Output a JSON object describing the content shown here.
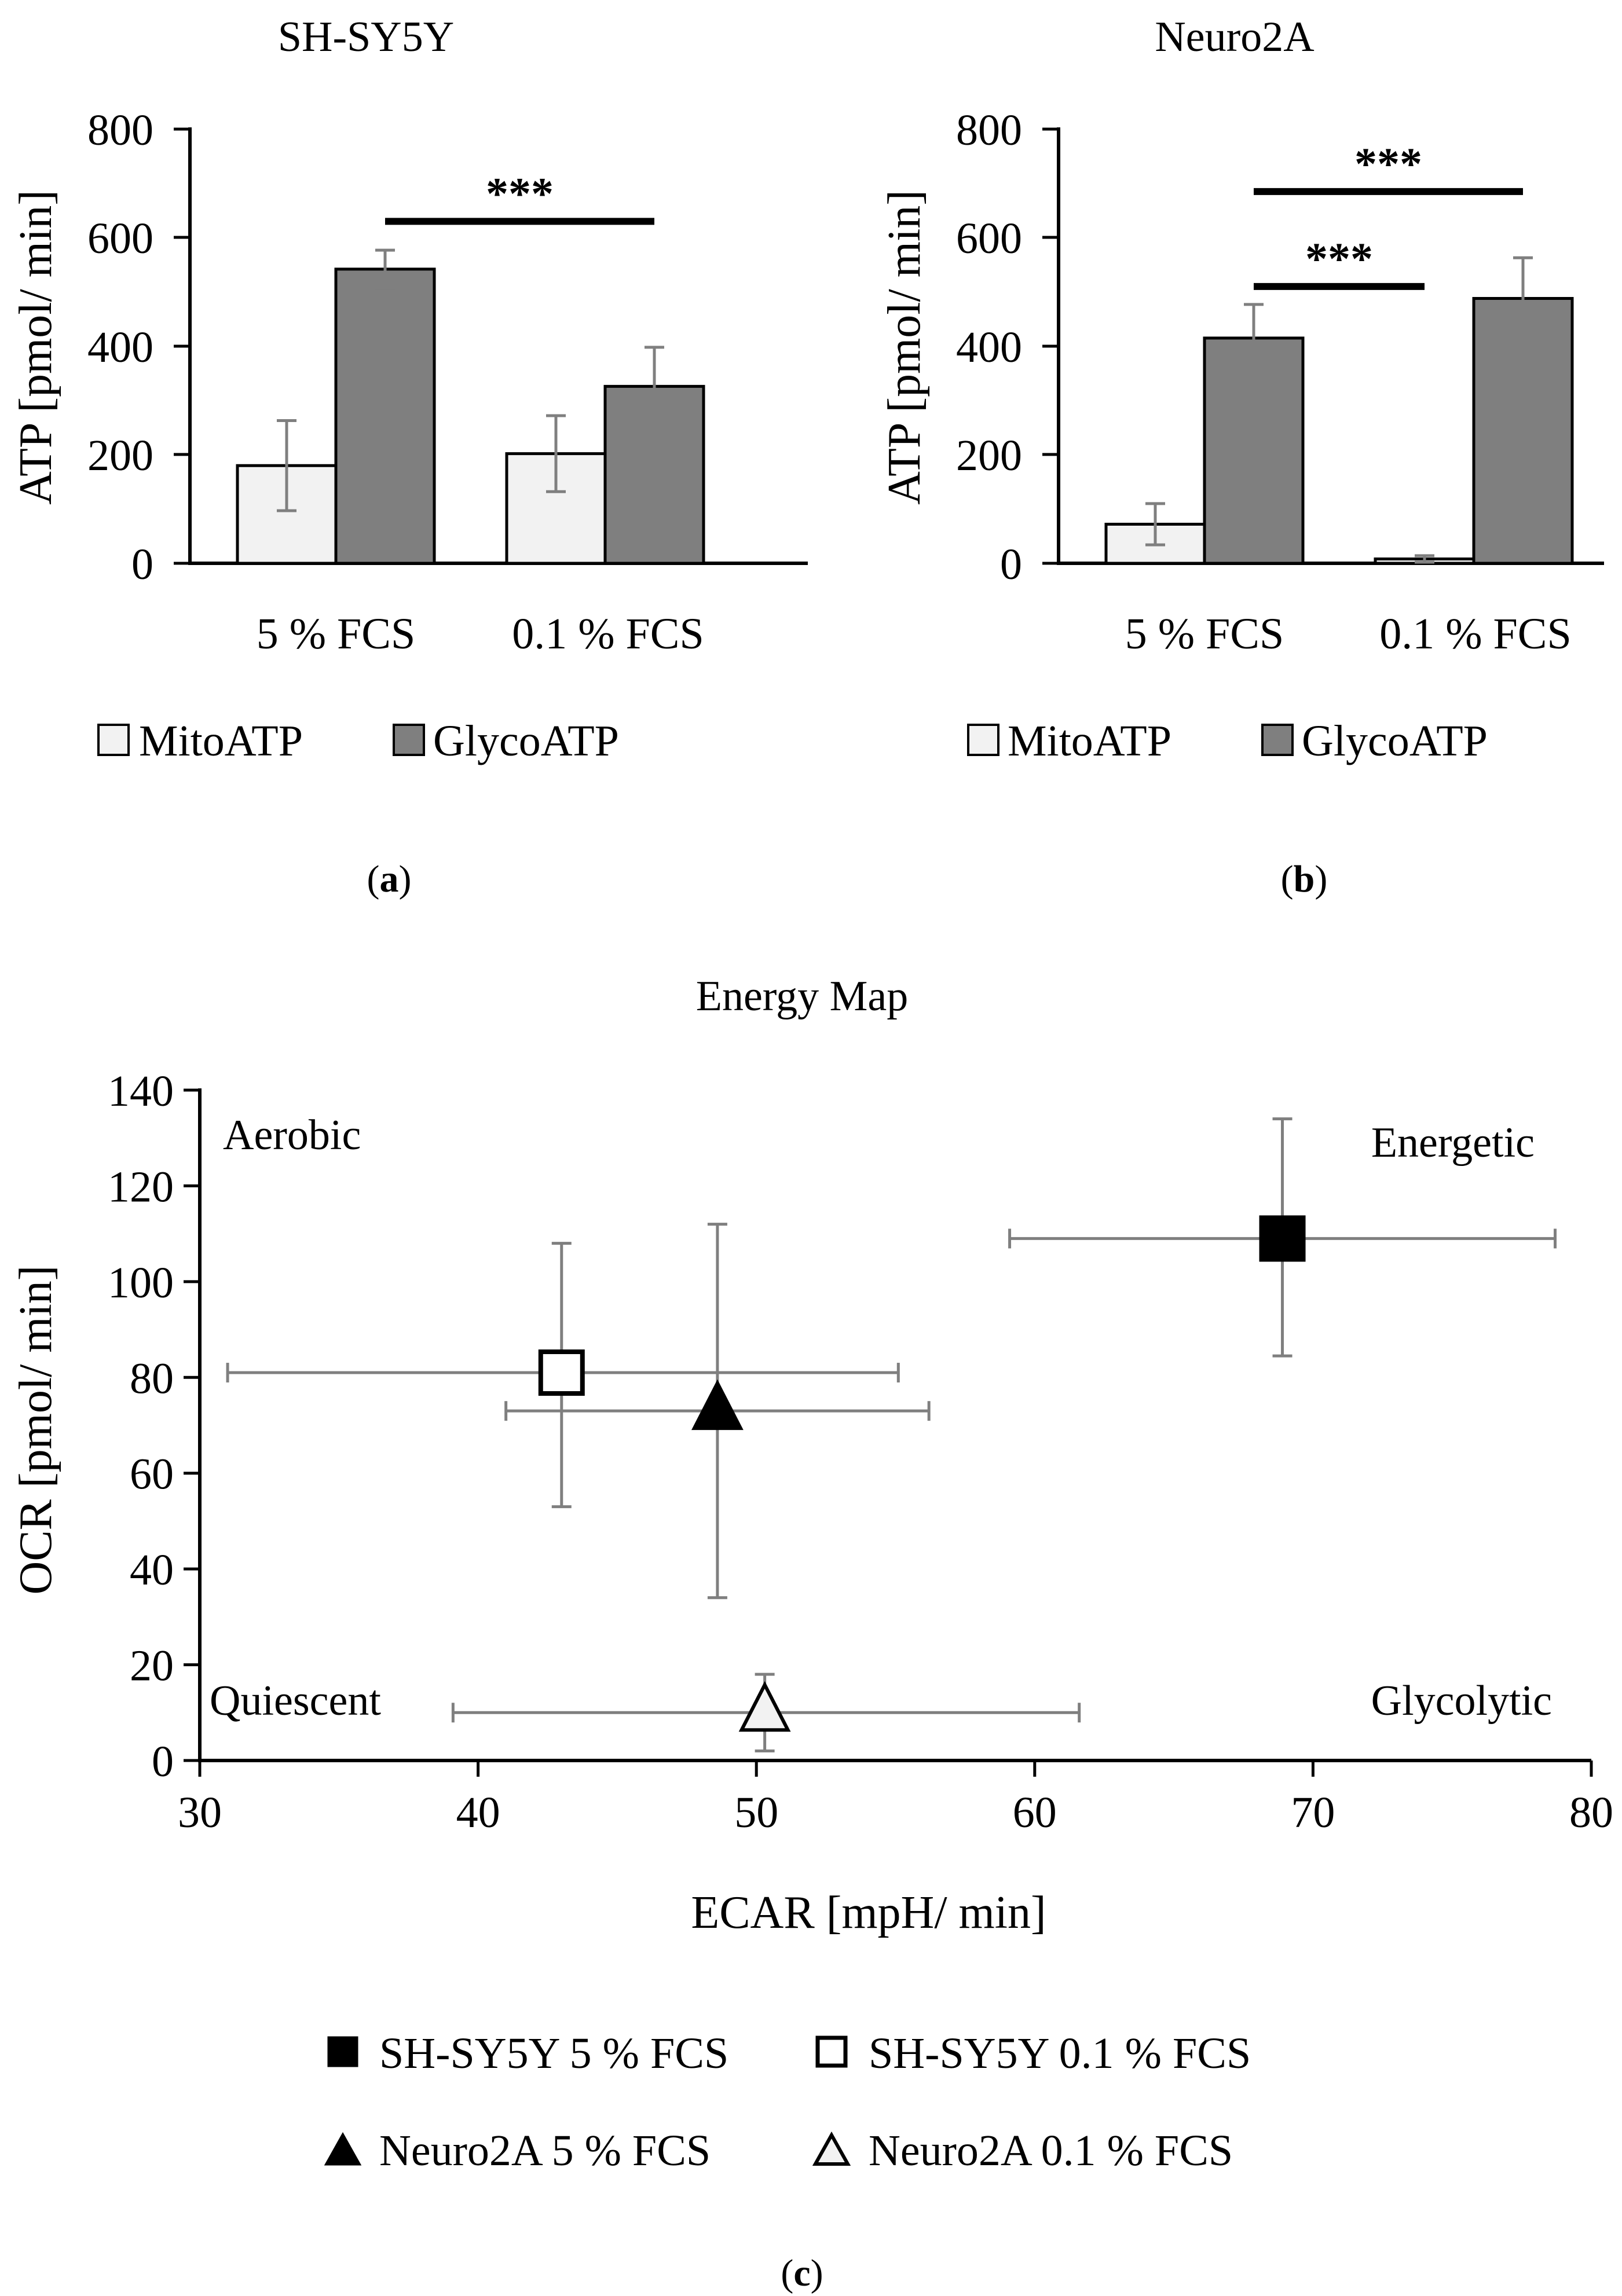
{
  "colors": {
    "mito": "#f2f2f2",
    "glyco": "#7f7f7f",
    "error_bar": "#7f7f7f",
    "axis": "#000000"
  },
  "chart_data": [
    {
      "type": "bar",
      "title": "SH-SY5Y",
      "panel_label": "(a)",
      "ylabel": "ATP [pmol/ min]",
      "ylim": [
        0,
        800
      ],
      "yticks": [
        0,
        200,
        400,
        600,
        800
      ],
      "categories": [
        "5 % FCS",
        "0.1 % FCS"
      ],
      "series": [
        {
          "name": "MitoATP",
          "values": [
            180,
            202
          ],
          "errors": [
            83,
            70
          ],
          "color": "#f2f2f2"
        },
        {
          "name": "GlycoATP",
          "values": [
            542,
            326
          ],
          "errors": [
            35,
            72
          ],
          "color": "#7f7f7f"
        }
      ],
      "significance": [
        {
          "label": "***",
          "from_bar": [
            0,
            1
          ],
          "to_bar": [
            1,
            1
          ],
          "y": 630
        }
      ],
      "legend": "bottom"
    },
    {
      "type": "bar",
      "title": "Neuro2A",
      "panel_label": "(b)",
      "ylabel": "ATP [pmol/ min]",
      "ylim": [
        0,
        800
      ],
      "yticks": [
        0,
        200,
        400,
        600,
        800
      ],
      "categories": [
        "5 % FCS",
        "0.1 % FCS"
      ],
      "series": [
        {
          "name": "MitoATP",
          "values": [
            72,
            8
          ],
          "errors": [
            38,
            6
          ],
          "color": "#f2f2f2"
        },
        {
          "name": "GlycoATP",
          "values": [
            415,
            488
          ],
          "errors": [
            62,
            75
          ],
          "color": "#7f7f7f"
        }
      ],
      "significance": [
        {
          "label": "***",
          "from_bar": [
            0,
            1
          ],
          "to_bar": [
            1,
            0
          ],
          "y": 510
        },
        {
          "label": "***",
          "from_bar": [
            0,
            1
          ],
          "to_bar": [
            1,
            1
          ],
          "y": 685
        }
      ],
      "legend": "bottom"
    },
    {
      "type": "scatter",
      "title": "Energy Map",
      "panel_label": "(c)",
      "xlabel": "ECAR [mpH/ min]",
      "ylabel": "OCR [pmol/ min]",
      "xlim": [
        30,
        80
      ],
      "ylim": [
        0,
        140
      ],
      "xticks": [
        30,
        40,
        50,
        60,
        70,
        80
      ],
      "yticks": [
        0,
        20,
        40,
        60,
        80,
        100,
        120,
        140
      ],
      "quadrant_labels": [
        "Aerobic",
        "Energetic",
        "Quiescent",
        "Glycolytic"
      ],
      "series": [
        {
          "name": "SH-SY5Y 5 % FCS",
          "marker": "square",
          "fill": "#000000",
          "x": 68.9,
          "y": 109,
          "x_err": [
            59.1,
            78.7
          ],
          "y_err": [
            84.5,
            134
          ]
        },
        {
          "name": "SH-SY5Y 0.1 % FCS",
          "marker": "square",
          "fill": "#ffffff",
          "x": 43.0,
          "y": 81,
          "x_err": [
            31.0,
            55.1
          ],
          "y_err": [
            53,
            108
          ]
        },
        {
          "name": "Neuro2A 5 % FCS",
          "marker": "triangle",
          "fill": "#000000",
          "x": 48.6,
          "y": 73,
          "x_err": [
            41.0,
            56.2
          ],
          "y_err": [
            34,
            112
          ]
        },
        {
          "name": "Neuro2A 0.1 % FCS",
          "marker": "triangle",
          "fill": "#f2f2f2",
          "x": 50.3,
          "y": 10,
          "x_err": [
            39.1,
            61.6
          ],
          "y_err": [
            2,
            18
          ]
        }
      ],
      "legend": "bottom"
    }
  ]
}
